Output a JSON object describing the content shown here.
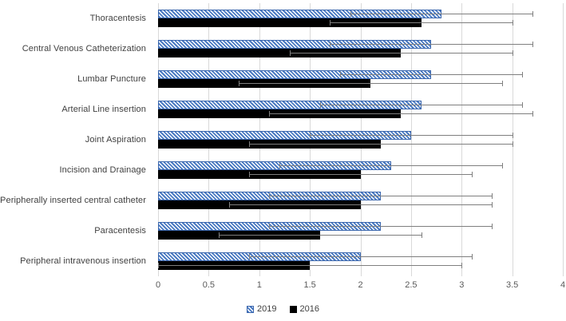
{
  "chart_data": {
    "type": "bar",
    "orientation": "horizontal",
    "title": "",
    "xlabel": "",
    "ylabel": "",
    "xlim": [
      0,
      4
    ],
    "x_ticks": [
      "0",
      "0.5",
      "1",
      "1.5",
      "2",
      "2.5",
      "3",
      "3.5",
      "4"
    ],
    "grid": true,
    "legend_position": "bottom",
    "categories": [
      "Thoracentesis",
      "Central Venous Catheterization",
      "Lumbar Puncture",
      "Arterial Line insertion",
      "Joint Aspiration",
      "Incision and Drainage",
      "Peripherally inserted central catheter",
      "Paracentesis",
      "Peripheral intravenous insertion"
    ],
    "series": [
      {
        "name": "2019",
        "style": "hatched-blue",
        "values": [
          2.8,
          2.7,
          2.7,
          2.6,
          2.5,
          2.3,
          2.2,
          2.2,
          2.0
        ],
        "error_low": [
          1.9,
          1.7,
          1.8,
          1.6,
          1.5,
          1.2,
          1.1,
          1.1,
          0.9
        ],
        "error_high": [
          3.7,
          3.7,
          3.6,
          3.6,
          3.5,
          3.4,
          3.3,
          3.3,
          3.1
        ]
      },
      {
        "name": "2016",
        "style": "solid-black",
        "values": [
          2.6,
          2.4,
          2.1,
          2.4,
          2.2,
          2.0,
          2.0,
          1.6,
          1.5
        ],
        "error_low": [
          1.7,
          1.3,
          0.8,
          1.1,
          0.9,
          0.9,
          0.7,
          0.6,
          0.0
        ],
        "error_high": [
          3.5,
          3.5,
          3.4,
          3.7,
          3.5,
          3.1,
          3.3,
          2.6,
          3.0
        ]
      }
    ],
    "colors": {
      "series_2019_fill": "#4a7ac2",
      "series_2019_border": "#3a66ad",
      "series_2016_fill": "#000000",
      "gridline": "#d9d9d9",
      "error_bar": "#7f7f7f",
      "category_label": "#404040",
      "tick_label": "#595959"
    },
    "legend": [
      {
        "label": "2019"
      },
      {
        "label": "2016"
      }
    ]
  }
}
